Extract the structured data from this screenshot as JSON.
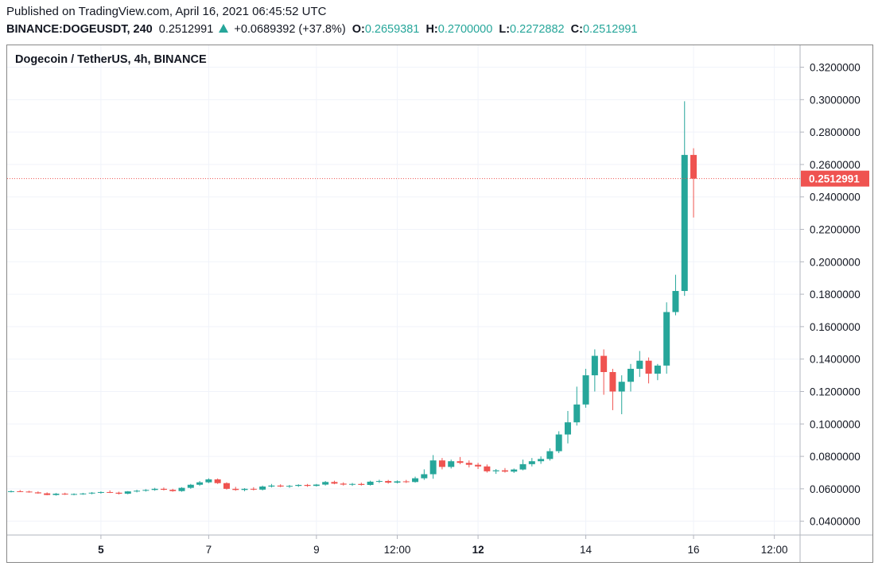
{
  "header": {
    "published": "Published on TradingView.com, April 16, 2021 06:45:52 UTC",
    "symbol": "BINANCE:DOGEUSDT, 240",
    "last": "0.2512991",
    "change": "+0.0689392 (+37.8%)",
    "o_label": "O:",
    "o": "0.2659381",
    "h_label": "H:",
    "h": "0.2700000",
    "l_label": "L:",
    "l": "0.2272882",
    "c_label": "C:",
    "c": "0.2512991"
  },
  "chart_data": {
    "type": "candlestick",
    "title": "Dogecoin / TetherUS, 4h, BINANCE",
    "x_ticks": [
      {
        "label": "5",
        "bold": true,
        "i": 10
      },
      {
        "label": "7",
        "bold": false,
        "i": 22
      },
      {
        "label": "9",
        "bold": false,
        "i": 34
      },
      {
        "label": "12:00",
        "bold": false,
        "i": 43
      },
      {
        "label": "12",
        "bold": true,
        "i": 52
      },
      {
        "label": "14",
        "bold": false,
        "i": 64
      },
      {
        "label": "16",
        "bold": false,
        "i": 76
      },
      {
        "label": "12:00",
        "bold": false,
        "i": 85
      }
    ],
    "y_ticks": [
      "0.3200000",
      "0.3000000",
      "0.2800000",
      "0.2600000",
      "0.2400000",
      "0.2200000",
      "0.2000000",
      "0.1800000",
      "0.1600000",
      "0.1400000",
      "0.1200000",
      "0.1000000",
      "0.0800000",
      "0.0600000",
      "0.0400000"
    ],
    "ylim": [
      0.0315,
      0.3335
    ],
    "last_price": 0.2512991,
    "last_price_label": "0.2512991",
    "colors": {
      "up": "#26a69a",
      "down": "#ef5350",
      "grid": "#f0f3fa"
    },
    "candles": [
      [
        0.0582,
        0.059,
        0.0578,
        0.0585
      ],
      [
        0.0585,
        0.0592,
        0.058,
        0.0583
      ],
      [
        0.0583,
        0.0588,
        0.0576,
        0.0578
      ],
      [
        0.0578,
        0.0584,
        0.057,
        0.0572
      ],
      [
        0.0572,
        0.0578,
        0.056,
        0.0562
      ],
      [
        0.0562,
        0.0574,
        0.0558,
        0.057
      ],
      [
        0.057,
        0.0576,
        0.0562,
        0.0565
      ],
      [
        0.0565,
        0.0572,
        0.056,
        0.0568
      ],
      [
        0.0568,
        0.0575,
        0.0563,
        0.0571
      ],
      [
        0.0571,
        0.058,
        0.0566,
        0.0576
      ],
      [
        0.0576,
        0.0584,
        0.057,
        0.058
      ],
      [
        0.058,
        0.059,
        0.0574,
        0.0576
      ],
      [
        0.0576,
        0.0582,
        0.0565,
        0.057
      ],
      [
        0.057,
        0.0586,
        0.0566,
        0.0584
      ],
      [
        0.0584,
        0.0594,
        0.0578,
        0.0588
      ],
      [
        0.0588,
        0.0598,
        0.0583,
        0.0593
      ],
      [
        0.0593,
        0.0606,
        0.0588,
        0.06
      ],
      [
        0.06,
        0.0608,
        0.059,
        0.0594
      ],
      [
        0.0594,
        0.06,
        0.0582,
        0.0586
      ],
      [
        0.0586,
        0.061,
        0.0582,
        0.0606
      ],
      [
        0.0606,
        0.063,
        0.06,
        0.0625
      ],
      [
        0.0625,
        0.0648,
        0.0618,
        0.064
      ],
      [
        0.064,
        0.0665,
        0.0635,
        0.0658
      ],
      [
        0.0658,
        0.0664,
        0.063,
        0.0635
      ],
      [
        0.0635,
        0.064,
        0.0595,
        0.06
      ],
      [
        0.06,
        0.0612,
        0.0588,
        0.0593
      ],
      [
        0.0593,
        0.0604,
        0.0585,
        0.06
      ],
      [
        0.06,
        0.061,
        0.059,
        0.0595
      ],
      [
        0.0595,
        0.062,
        0.059,
        0.0614
      ],
      [
        0.0614,
        0.063,
        0.0608,
        0.062
      ],
      [
        0.062,
        0.0628,
        0.061,
        0.0614
      ],
      [
        0.0614,
        0.0624,
        0.0606,
        0.0618
      ],
      [
        0.0618,
        0.0628,
        0.0612,
        0.0624
      ],
      [
        0.0624,
        0.063,
        0.0612,
        0.0618
      ],
      [
        0.0618,
        0.063,
        0.0614,
        0.0626
      ],
      [
        0.0626,
        0.0648,
        0.062,
        0.0642
      ],
      [
        0.0642,
        0.065,
        0.0628,
        0.0632
      ],
      [
        0.0632,
        0.064,
        0.062,
        0.0626
      ],
      [
        0.0626,
        0.0636,
        0.0618,
        0.063
      ],
      [
        0.063,
        0.0638,
        0.062,
        0.0624
      ],
      [
        0.0624,
        0.065,
        0.062,
        0.0644
      ],
      [
        0.0644,
        0.0656,
        0.0636,
        0.0648
      ],
      [
        0.0648,
        0.0655,
        0.0632,
        0.0638
      ],
      [
        0.0638,
        0.0652,
        0.0633,
        0.0646
      ],
      [
        0.0646,
        0.0655,
        0.0636,
        0.0642
      ],
      [
        0.0642,
        0.0675,
        0.0638,
        0.0665
      ],
      [
        0.0665,
        0.072,
        0.0655,
        0.069
      ],
      [
        0.069,
        0.0808,
        0.0662,
        0.0775
      ],
      [
        0.0775,
        0.079,
        0.072,
        0.0735
      ],
      [
        0.0735,
        0.078,
        0.0725,
        0.077
      ],
      [
        0.077,
        0.0796,
        0.0752,
        0.076
      ],
      [
        0.076,
        0.0775,
        0.0732,
        0.0748
      ],
      [
        0.0748,
        0.076,
        0.0722,
        0.0738
      ],
      [
        0.0738,
        0.075,
        0.07,
        0.0708
      ],
      [
        0.0708,
        0.0722,
        0.0692,
        0.0714
      ],
      [
        0.0714,
        0.0728,
        0.07,
        0.0706
      ],
      [
        0.0706,
        0.0725,
        0.0698,
        0.0719
      ],
      [
        0.0719,
        0.078,
        0.0714,
        0.0752
      ],
      [
        0.0752,
        0.079,
        0.0738,
        0.077
      ],
      [
        0.077,
        0.08,
        0.0754,
        0.0784
      ],
      [
        0.0784,
        0.085,
        0.0774,
        0.0832
      ],
      [
        0.0832,
        0.0955,
        0.082,
        0.0935
      ],
      [
        0.0935,
        0.108,
        0.088,
        0.101
      ],
      [
        0.101,
        0.123,
        0.099,
        0.112
      ],
      [
        0.112,
        0.134,
        0.11,
        0.13
      ],
      [
        0.13,
        0.146,
        0.12,
        0.142
      ],
      [
        0.142,
        0.146,
        0.118,
        0.132
      ],
      [
        0.132,
        0.134,
        0.1085,
        0.12
      ],
      [
        0.12,
        0.13,
        0.106,
        0.126
      ],
      [
        0.126,
        0.137,
        0.12,
        0.134
      ],
      [
        0.134,
        0.145,
        0.129,
        0.139
      ],
      [
        0.139,
        0.141,
        0.125,
        0.131
      ],
      [
        0.131,
        0.137,
        0.127,
        0.136
      ],
      [
        0.136,
        0.175,
        0.131,
        0.169
      ],
      [
        0.169,
        0.192,
        0.167,
        0.182
      ],
      [
        0.182,
        0.299,
        0.179,
        0.2659
      ],
      [
        0.2659,
        0.27,
        0.2273,
        0.2513
      ]
    ]
  }
}
